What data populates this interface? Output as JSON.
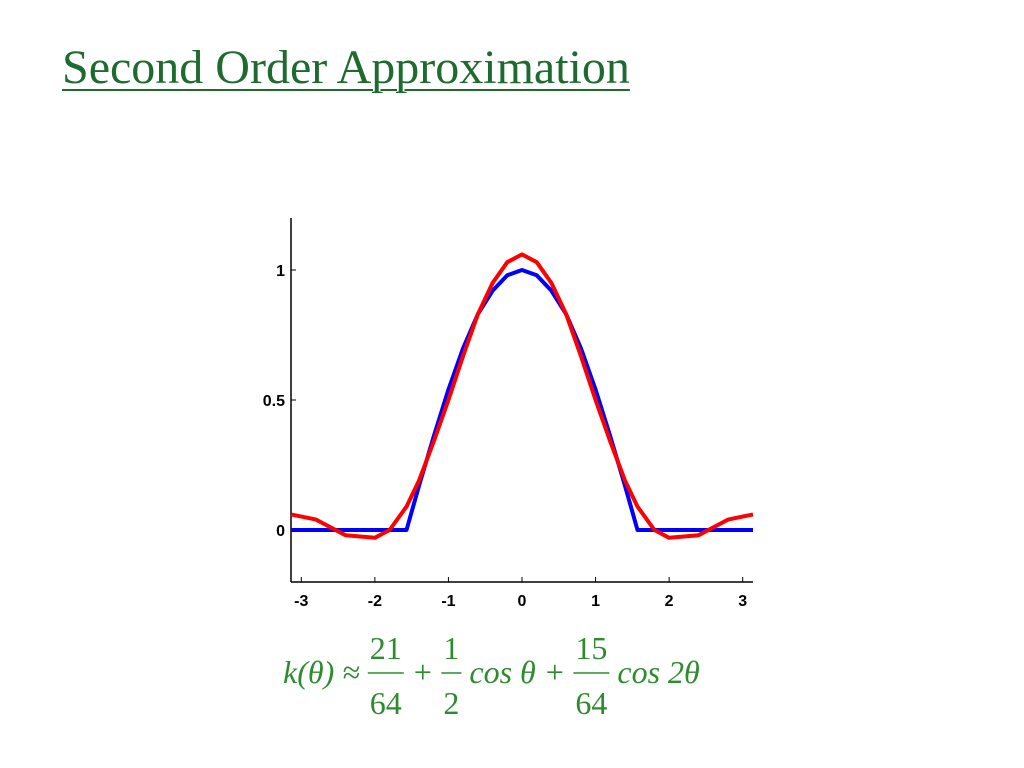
{
  "title": "Second Order Approximation",
  "chart_data": {
    "type": "line",
    "x": [
      -3.14,
      -2.8,
      -2.4,
      -2.0,
      -1.8,
      -1.57,
      -1.4,
      -1.2,
      -1.0,
      -0.8,
      -0.6,
      -0.4,
      -0.2,
      0,
      0.2,
      0.4,
      0.6,
      0.8,
      1.0,
      1.2,
      1.4,
      1.57,
      1.8,
      2.0,
      2.4,
      2.8,
      3.14
    ],
    "series": [
      {
        "color": "#0000ff",
        "values": [
          0,
          0,
          0,
          0,
          0,
          0,
          0.17,
          0.36,
          0.54,
          0.7,
          0.83,
          0.92,
          0.98,
          1,
          0.98,
          0.92,
          0.83,
          0.7,
          0.54,
          0.36,
          0.17,
          0,
          0,
          0,
          0,
          0,
          0
        ]
      },
      {
        "color": "#ff0000",
        "values": [
          0.06,
          0.04,
          -0.02,
          -0.03,
          0.0,
          0.09,
          0.19,
          0.34,
          0.5,
          0.67,
          0.83,
          0.95,
          1.03,
          1.06,
          1.03,
          0.95,
          0.83,
          0.67,
          0.5,
          0.34,
          0.19,
          0.09,
          0.0,
          -0.03,
          -0.02,
          0.04,
          0.06
        ]
      }
    ],
    "xlim": [
      -3.14,
      3.14
    ],
    "ylim": [
      -0.2,
      1.2
    ],
    "xticks": [
      -3,
      -2,
      -1,
      0,
      1,
      2,
      3
    ],
    "yticks": [
      0,
      0.5,
      1
    ],
    "formula": [
      "k(θ) ≈",
      {
        "num": "21",
        "den": "64"
      },
      "+",
      {
        "num": "1",
        "den": "2"
      },
      "cos θ +",
      {
        "num": "15",
        "den": "64"
      },
      "cos 2θ"
    ]
  }
}
